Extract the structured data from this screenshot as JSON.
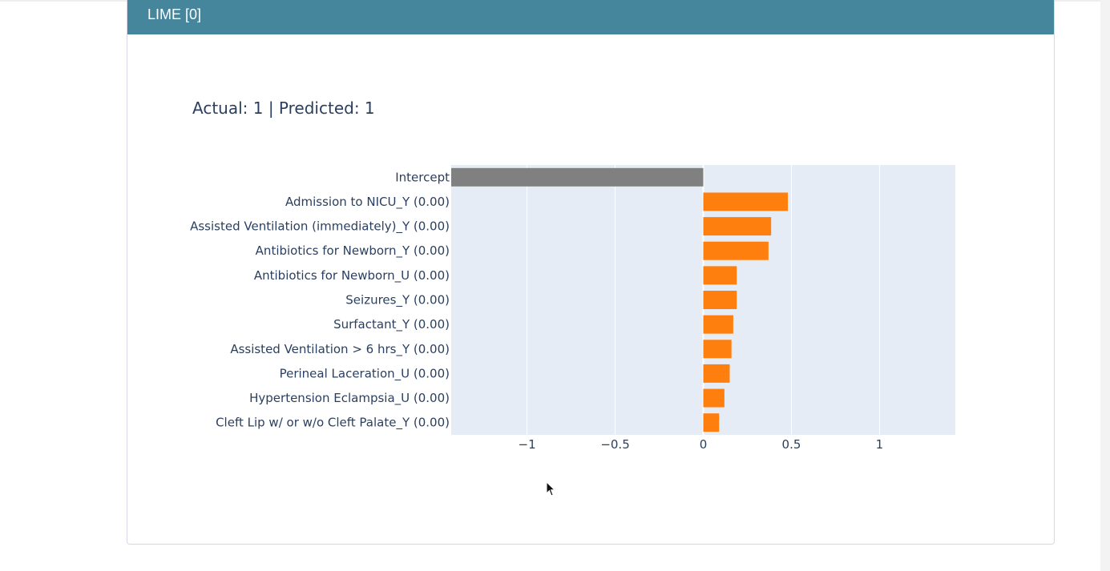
{
  "card": {
    "title": "LIME [0]"
  },
  "chart_data": {
    "type": "bar",
    "orientation": "horizontal",
    "title": "Actual: 1 | Predicted: 1",
    "xlabel": "",
    "ylabel": "",
    "xlim": [
      -1.43,
      1.43
    ],
    "xticks": [
      -1,
      -0.5,
      0,
      0.5,
      1
    ],
    "xtick_labels": [
      "−1",
      "−0.5",
      "0",
      "0.5",
      "1"
    ],
    "grid": true,
    "categories": [
      "Intercept",
      "Admission to NICU_Y (0.00)",
      "Assisted Ventilation (immediately)_Y (0.00)",
      "Antibiotics for Newborn_Y (0.00)",
      "Antibiotics for Newborn_U (0.00)",
      "Seizures_Y (0.00)",
      "Surfactant_Y (0.00)",
      "Assisted Ventilation > 6 hrs_Y (0.00)",
      "Perineal Laceration_U (0.00)",
      "Hypertension Eclampsia_U (0.00)",
      "Cleft Lip w/ or w/o Cleft Palate_Y (0.00)"
    ],
    "values": [
      -1.43,
      0.48,
      0.385,
      0.37,
      0.19,
      0.19,
      0.17,
      0.16,
      0.15,
      0.12,
      0.09
    ],
    "colors": {
      "intercept": "#808080",
      "positive": "#ff7f0e",
      "plot_background": "#e5ecf6",
      "text": "#2a3f5f"
    }
  }
}
